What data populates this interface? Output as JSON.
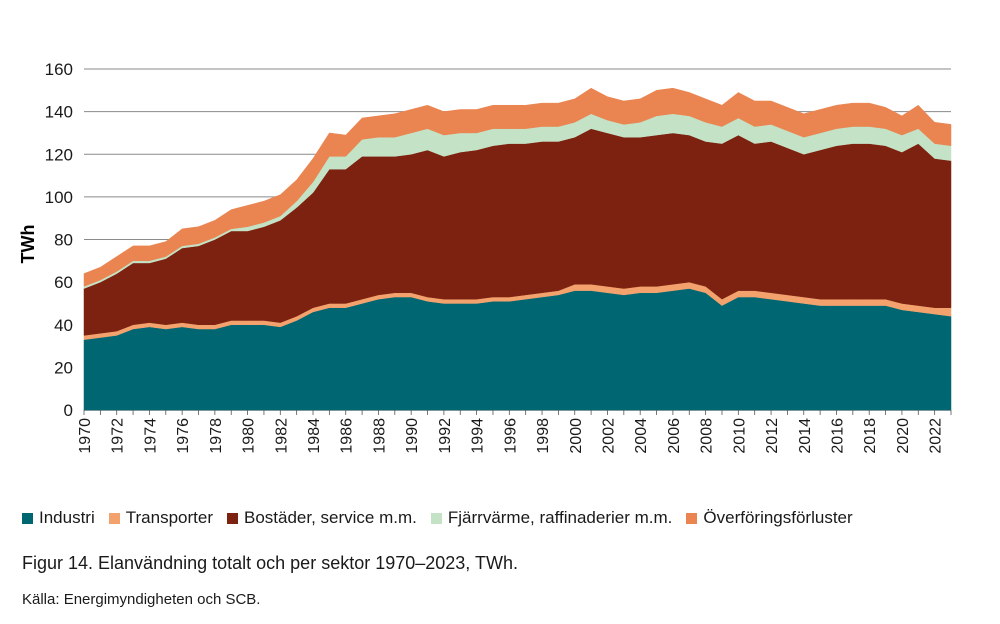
{
  "chart_data": {
    "type": "area",
    "stacked": true,
    "ylabel": "TWh",
    "xlabel": "",
    "ylim": [
      0,
      160
    ],
    "yticks": [
      0,
      20,
      40,
      60,
      80,
      100,
      120,
      140,
      160
    ],
    "x": [
      1970,
      1971,
      1972,
      1973,
      1974,
      1975,
      1976,
      1977,
      1978,
      1979,
      1980,
      1981,
      1982,
      1983,
      1984,
      1985,
      1986,
      1987,
      1988,
      1989,
      1990,
      1991,
      1992,
      1993,
      1994,
      1995,
      1996,
      1997,
      1998,
      1999,
      2000,
      2001,
      2002,
      2003,
      2004,
      2005,
      2006,
      2007,
      2008,
      2009,
      2010,
      2011,
      2012,
      2013,
      2014,
      2015,
      2016,
      2017,
      2018,
      2019,
      2020,
      2021,
      2022,
      2023
    ],
    "xtick_labels": [
      "1970",
      "1972",
      "1974",
      "1976",
      "1978",
      "1980",
      "1982",
      "1984",
      "1986",
      "1988",
      "1990",
      "1992",
      "1994",
      "1996",
      "1998",
      "2000",
      "2002",
      "2004",
      "2006",
      "2008",
      "2010",
      "2012",
      "2014",
      "2016",
      "2018",
      "2020",
      "2022"
    ],
    "series": [
      {
        "name": "Industri",
        "color": "#006672",
        "values": [
          33,
          34,
          35,
          38,
          39,
          38,
          39,
          38,
          38,
          40,
          40,
          40,
          39,
          42,
          46,
          48,
          48,
          50,
          52,
          53,
          53,
          51,
          50,
          50,
          50,
          51,
          51,
          52,
          53,
          54,
          56,
          56,
          55,
          54,
          55,
          55,
          56,
          57,
          55,
          49,
          53,
          53,
          52,
          51,
          50,
          49,
          49,
          49,
          49,
          49,
          47,
          46,
          45,
          44
        ]
      },
      {
        "name": "Transporter",
        "color": "#f3a26d",
        "values": [
          2,
          2,
          2,
          2,
          2,
          2,
          2,
          2,
          2,
          2,
          2,
          2,
          2,
          2,
          2,
          2,
          2,
          2,
          2,
          2,
          2,
          2,
          2,
          2,
          2,
          2,
          2,
          2,
          2,
          2,
          3,
          3,
          3,
          3,
          3,
          3,
          3,
          3,
          3,
          3,
          3,
          3,
          3,
          3,
          3,
          3,
          3,
          3,
          3,
          3,
          3,
          3,
          3,
          4
        ]
      },
      {
        "name": "Bostäder, service m.m.",
        "color": "#7d2210",
        "values": [
          22,
          24,
          27,
          29,
          28,
          31,
          35,
          37,
          40,
          42,
          42,
          44,
          48,
          51,
          54,
          63,
          63,
          67,
          65,
          64,
          65,
          69,
          67,
          69,
          70,
          71,
          72,
          71,
          71,
          70,
          69,
          73,
          72,
          71,
          70,
          71,
          71,
          69,
          68,
          73,
          73,
          69,
          71,
          69,
          67,
          70,
          72,
          73,
          73,
          72,
          71,
          76,
          70,
          69
        ]
      },
      {
        "name": "Fjärrvärme, raffinaderier m.m.",
        "color": "#c4e3c6",
        "values": [
          1,
          1,
          1,
          1,
          1,
          1,
          1,
          1,
          1,
          1,
          2,
          2,
          2,
          3,
          5,
          6,
          6,
          8,
          9,
          9,
          10,
          10,
          10,
          9,
          8,
          8,
          7,
          7,
          7,
          7,
          7,
          7,
          6,
          6,
          7,
          9,
          9,
          9,
          9,
          8,
          8,
          8,
          8,
          8,
          8,
          8,
          8,
          8,
          8,
          8,
          8,
          7,
          7,
          7
        ]
      },
      {
        "name": "Överföringsförluster",
        "color": "#ea8450",
        "values": [
          6,
          6,
          7,
          7,
          7,
          7,
          8,
          8,
          8,
          9,
          10,
          10,
          10,
          10,
          11,
          11,
          10,
          10,
          10,
          11,
          11,
          11,
          11,
          11,
          11,
          11,
          11,
          11,
          11,
          11,
          11,
          12,
          11,
          11,
          11,
          12,
          12,
          11,
          11,
          10,
          12,
          12,
          11,
          11,
          11,
          11,
          11,
          11,
          11,
          10,
          9,
          11,
          10,
          10
        ]
      }
    ]
  },
  "caption": "Figur 14. Elanvändning totalt och per sektor 1970–2023, TWh.",
  "source": "Källa: Energimyndigheten och SCB."
}
